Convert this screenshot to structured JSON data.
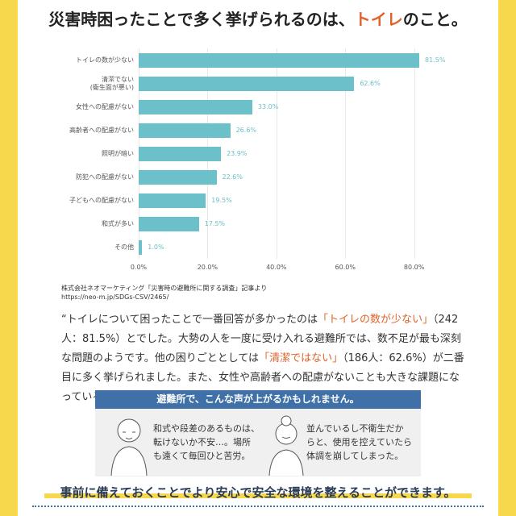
{
  "header": {
    "title_parts": [
      "災害時困ったことで多く挙げられるのは、",
      "トイレ",
      "のこと。"
    ]
  },
  "chart_data": {
    "type": "hbar",
    "categories": [
      "トイレの数が少ない",
      "清潔でない\n(衛生面が悪い)",
      "女性への配慮がない",
      "高齢者への配慮がない",
      "照明が暗い",
      "防犯への配慮がない",
      "子どもへの配慮がない",
      "和式が多い",
      "その他"
    ],
    "values": [
      81.5,
      62.6,
      33.0,
      26.6,
      23.9,
      22.6,
      19.5,
      17.5,
      1.0
    ],
    "value_labels": [
      "81.5%",
      "62.6%",
      "33.0%",
      "26.6%",
      "23.9%",
      "22.6%",
      "19.5%",
      "17.5%",
      "1.0%"
    ],
    "color": "#6cc0c9",
    "xlim": [
      0,
      85
    ],
    "xticks": [
      {
        "value": 0,
        "label": "0.0%"
      },
      {
        "value": 20,
        "label": "20.0%"
      },
      {
        "value": 40,
        "label": "40.0%"
      },
      {
        "value": 60,
        "label": "60.0%"
      },
      {
        "value": 80,
        "label": "80.0%"
      }
    ],
    "grid": true
  },
  "source": {
    "line1": "株式会社ネオマーケティング「災害時の避難所に関する調査」記事より",
    "line2": "https://neo-m.jp/SDGs-CSV/2465/"
  },
  "paragraph": {
    "parts": [
      "“トイレについて困ったことで一番回答が多かったのは",
      "「トイレの数が少ない」",
      "（242人：81.5%）とでした。大勢の人を一度に受け入れる避難所では、数不足が最も深刻な問題のようです。他の困りごととしては",
      "「清潔ではない」",
      "（186人：62.6%）が二番目に多く挙げられました。また、女性や高齢者への配慮がないことも大きな課題になっているようです。„"
    ]
  },
  "voices": {
    "heading": "避難所で、こんな声が上がるかもしれません。",
    "items": [
      "和式や段差のあるものは、\n転けないか不安…。場所\nも遠くて毎回ひと苦労。",
      "並んでいるし不衛生だか\nらと、使用を控えていたら\n体調を崩してしまった。"
    ]
  },
  "footer": {
    "text": "事前に備えておくことでより安心で安全な環境を整えることができます。"
  }
}
